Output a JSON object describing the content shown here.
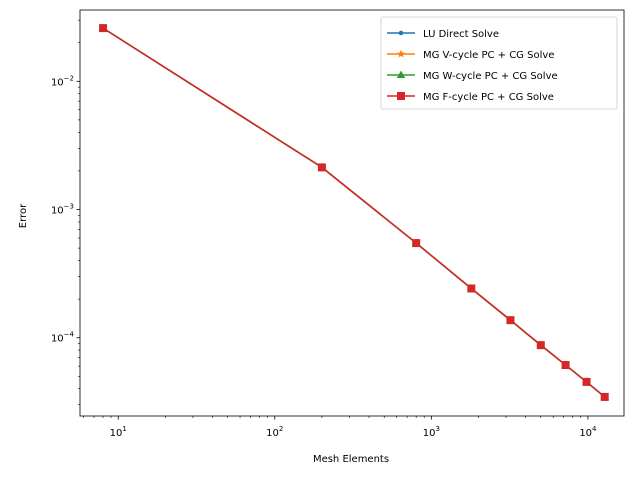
{
  "chart_data": {
    "type": "line",
    "title": "",
    "xlabel": "Mesh Elements",
    "ylabel": "Error",
    "xscale": "log",
    "yscale": "log",
    "xlim": [
      5.7,
      17000
    ],
    "ylim": [
      2.45e-05,
      0.036
    ],
    "grid": false,
    "legend_position": "top-right",
    "x": [
      8,
      200,
      800,
      1800,
      3200,
      5000,
      7200,
      9800,
      12800
    ],
    "x_ticks": [
      {
        "value": 10,
        "base": "10",
        "exp": "1"
      },
      {
        "value": 100,
        "base": "10",
        "exp": "2"
      },
      {
        "value": 1000,
        "base": "10",
        "exp": "3"
      },
      {
        "value": 10000,
        "base": "10",
        "exp": "4"
      }
    ],
    "y_ticks": [
      {
        "value": 0.0001,
        "base": "10",
        "exp": "−4"
      },
      {
        "value": 0.001,
        "base": "10",
        "exp": "−3"
      },
      {
        "value": 0.01,
        "base": "10",
        "exp": "−2"
      }
    ],
    "series": [
      {
        "name": "LU Direct Solve",
        "color": "#1f77b4",
        "marker": "point",
        "values": [
          0.026,
          0.00213,
          0.000547,
          0.000242,
          0.000137,
          8.75e-05,
          6.12e-05,
          4.52e-05,
          3.45e-05
        ]
      },
      {
        "name": "MG V-cycle PC + CG Solve",
        "color": "#ff7f0e",
        "marker": "star",
        "values": [
          0.026,
          0.00213,
          0.000547,
          0.000242,
          0.000137,
          8.75e-05,
          6.12e-05,
          4.52e-05,
          3.45e-05
        ]
      },
      {
        "name": "MG W-cycle PC + CG Solve",
        "color": "#2ca02c",
        "marker": "triangle",
        "values": [
          0.026,
          0.00213,
          0.000547,
          0.000242,
          0.000137,
          8.75e-05,
          6.12e-05,
          4.52e-05,
          3.45e-05
        ]
      },
      {
        "name": "MG F-cycle PC + CG Solve",
        "color": "#d62728",
        "marker": "square",
        "values": [
          0.026,
          0.00213,
          0.000547,
          0.000242,
          0.000137,
          8.75e-05,
          6.12e-05,
          4.52e-05,
          3.45e-05
        ]
      }
    ]
  }
}
